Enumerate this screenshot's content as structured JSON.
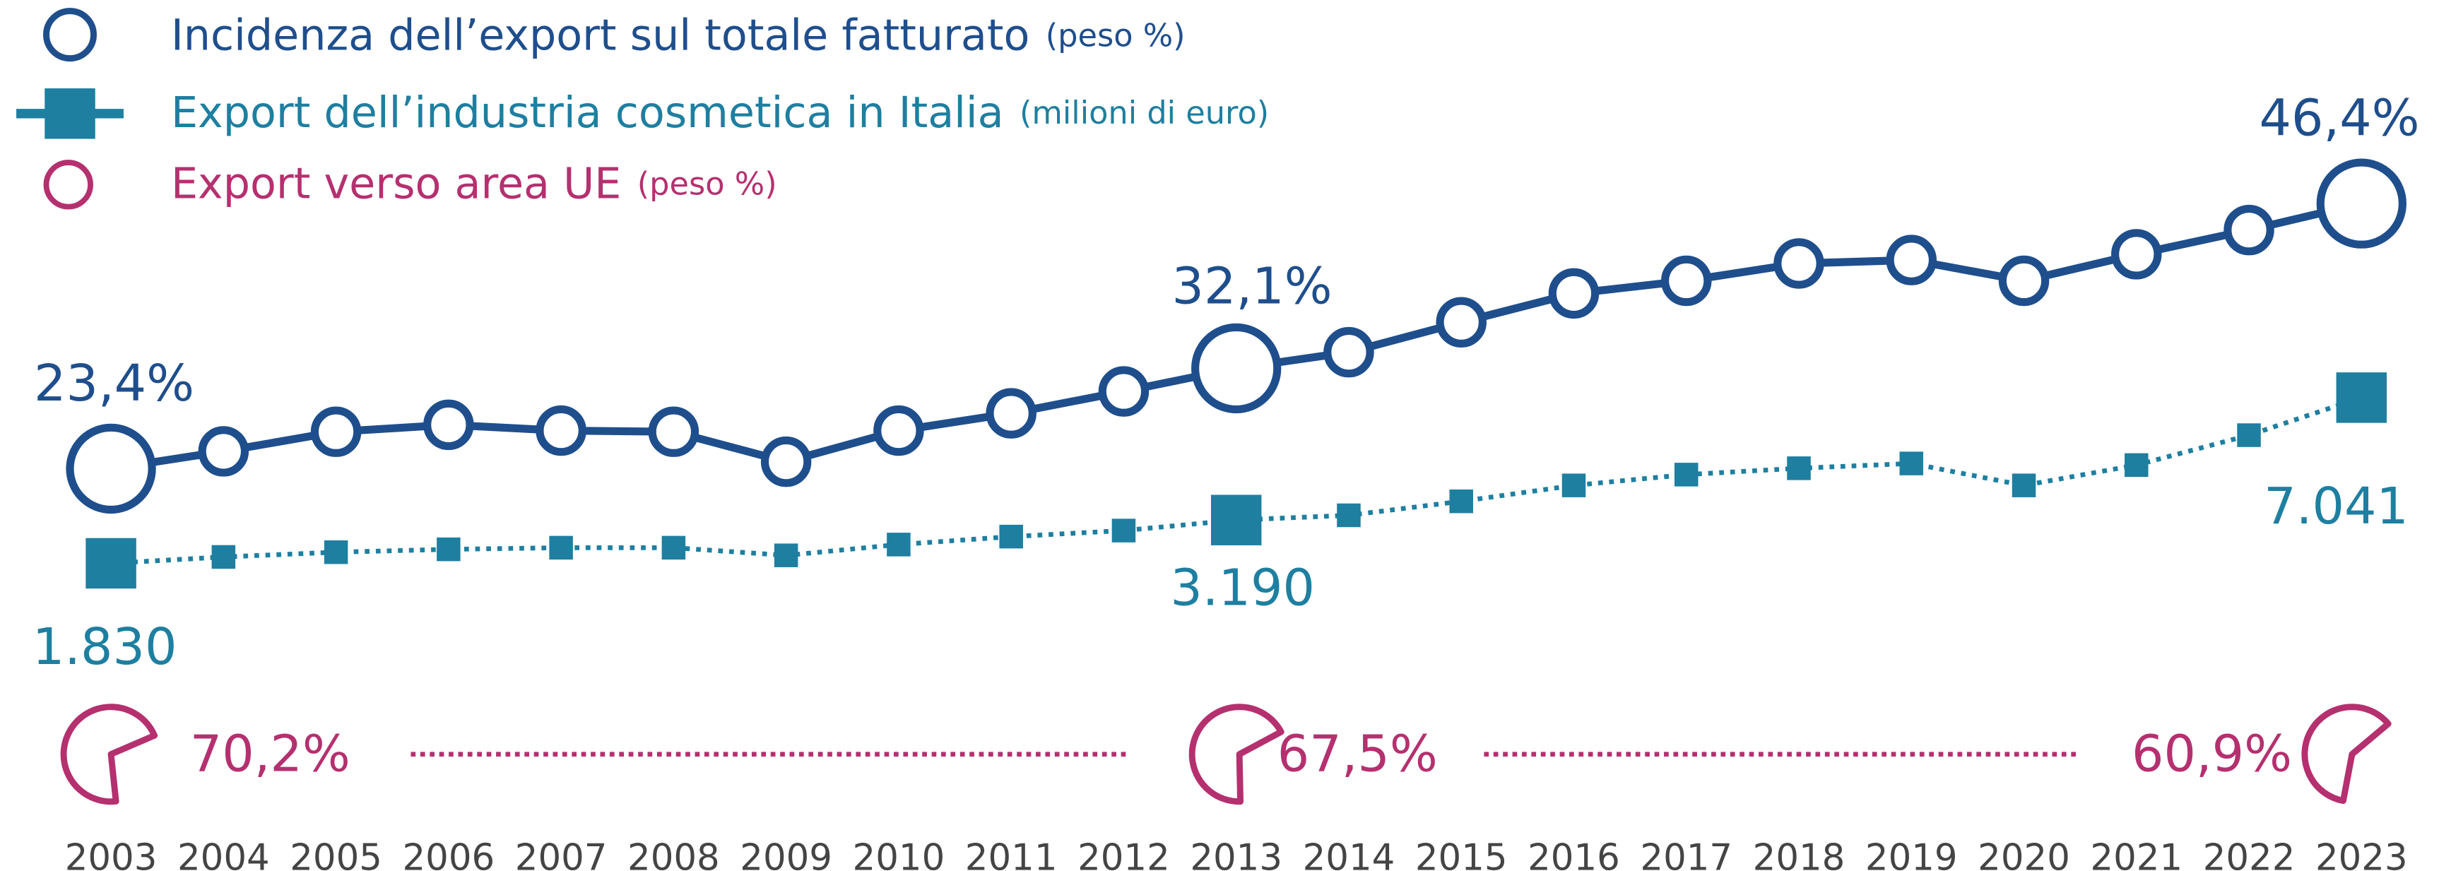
{
  "chart_data": {
    "type": "line",
    "categories": [
      "2003",
      "2004",
      "2005",
      "2006",
      "2007",
      "2008",
      "2009",
      "2010",
      "2011",
      "2012",
      "2013",
      "2014",
      "2015",
      "2016",
      "2017",
      "2018",
      "2019",
      "2020",
      "2021",
      "2022",
      "2023"
    ],
    "series": [
      {
        "name": "Incidenza dell’export sul totale fatturato",
        "unit": "(peso %)",
        "color": "#1f4e8c",
        "values": [
          23.4,
          24.9,
          26.6,
          27.2,
          26.7,
          26.6,
          24.0,
          26.7,
          28.2,
          30.1,
          32.1,
          33.5,
          36.1,
          38.6,
          39.7,
          41.2,
          41.5,
          39.7,
          42.0,
          44.1,
          46.4
        ],
        "value_labels": [
          "23,4%",
          null,
          null,
          null,
          null,
          null,
          null,
          null,
          null,
          null,
          "32,1%",
          null,
          null,
          null,
          null,
          null,
          null,
          null,
          null,
          null,
          "46,4%"
        ]
      },
      {
        "name": "Export dell’industria cosmetica in Italia",
        "unit": "(milioni di euro)",
        "color": "#1e7fa0",
        "values": [
          1830,
          2030,
          2180,
          2270,
          2320,
          2320,
          2080,
          2420,
          2670,
          2860,
          3190,
          3340,
          3780,
          4280,
          4620,
          4820,
          4970,
          4280,
          4920,
          5860,
          7041
        ],
        "value_labels": [
          "1.830",
          null,
          null,
          null,
          null,
          null,
          null,
          null,
          null,
          null,
          "3.190",
          null,
          null,
          null,
          null,
          null,
          null,
          null,
          null,
          null,
          "7.041"
        ]
      },
      {
        "name": "Export verso area UE",
        "unit": "(peso %)",
        "color": "#b5306f",
        "values": [
          70.2,
          null,
          null,
          null,
          null,
          null,
          null,
          null,
          null,
          null,
          67.5,
          null,
          null,
          null,
          null,
          null,
          null,
          null,
          null,
          null,
          60.9
        ],
        "value_labels": [
          "70,2%",
          null,
          null,
          null,
          null,
          null,
          null,
          null,
          null,
          null,
          "67,5%",
          null,
          null,
          null,
          null,
          null,
          null,
          null,
          null,
          null,
          "60,9%"
        ]
      }
    ]
  }
}
